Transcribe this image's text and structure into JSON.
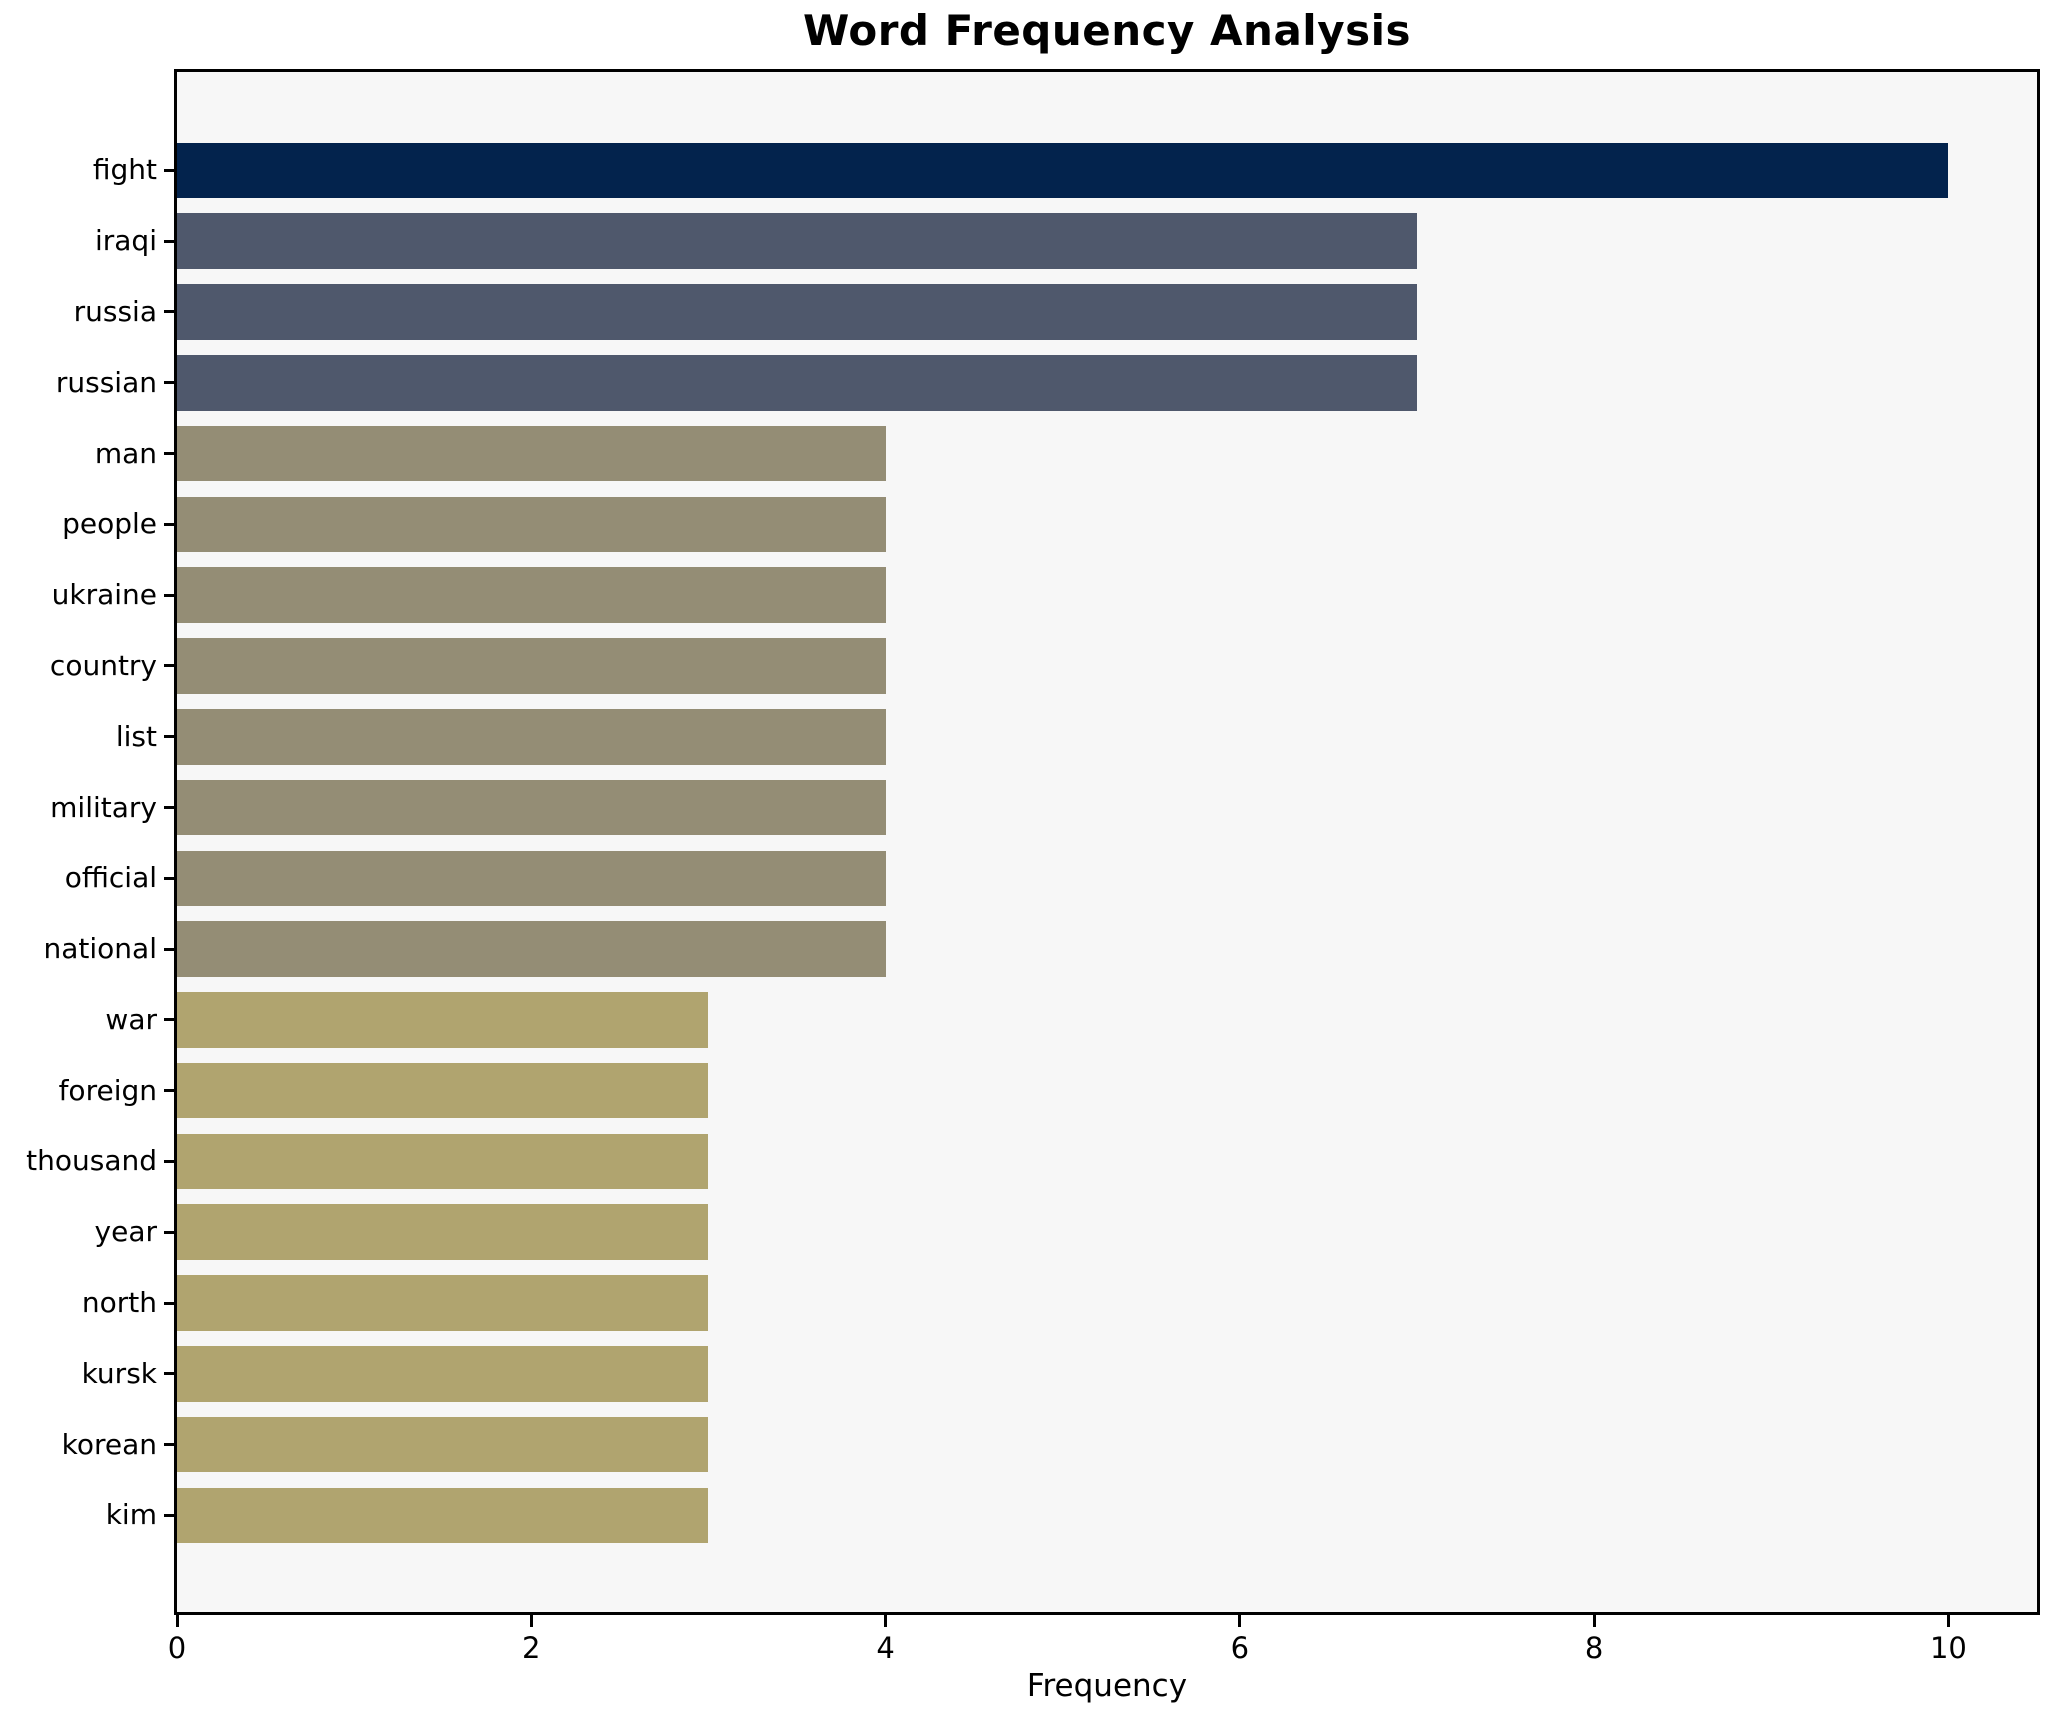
{
  "figure": {
    "background_color": "#ffffff",
    "plot_background_color": "#f7f7f7",
    "spine_color": "#000000",
    "text_color": "#000000"
  },
  "chart_data": {
    "type": "bar",
    "orientation": "horizontal",
    "title": "Word Frequency Analysis",
    "xlabel": "Frequency",
    "ylabel": "",
    "categories": [
      "fight",
      "iraqi",
      "russia",
      "russian",
      "man",
      "people",
      "ukraine",
      "country",
      "list",
      "military",
      "official",
      "national",
      "war",
      "foreign",
      "thousand",
      "year",
      "north",
      "kursk",
      "korean",
      "kim"
    ],
    "values": [
      10,
      7,
      7,
      7,
      4,
      4,
      4,
      4,
      4,
      4,
      4,
      4,
      3,
      3,
      3,
      3,
      3,
      3,
      3,
      3
    ],
    "bar_colors": [
      "#03234d",
      "#4f586c",
      "#4f586c",
      "#4f586c",
      "#948d75",
      "#948d75",
      "#948d75",
      "#948d75",
      "#948d75",
      "#948d75",
      "#948d75",
      "#948d75",
      "#b0a46f",
      "#b0a46f",
      "#b0a46f",
      "#b0a46f",
      "#b0a46f",
      "#b0a46f",
      "#b0a46f",
      "#b0a46f"
    ],
    "xlim": [
      0,
      10.5
    ],
    "xticks": [
      0,
      2,
      4,
      6,
      8,
      10
    ],
    "grid": false,
    "legend": null
  }
}
